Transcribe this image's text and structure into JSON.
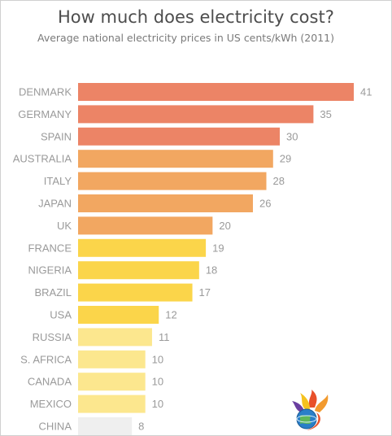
{
  "chart_data": {
    "type": "bar",
    "orientation": "horizontal",
    "title": "How much does electricity cost?",
    "subtitle": "Average national electricity prices in US cents/kWh (2011)",
    "xlabel": "",
    "ylabel": "",
    "xlim": [
      0,
      41
    ],
    "grid": false,
    "legend": "none",
    "categories": [
      "DENMARK",
      "GERMANY",
      "SPAIN",
      "AUSTRALIA",
      "ITALY",
      "JAPAN",
      "UK",
      "FRANCE",
      "NIGERIA",
      "BRAZIL",
      "USA",
      "RUSSIA",
      "S. AFRICA",
      "CANADA",
      "MEXICO",
      "CHINA"
    ],
    "values": [
      41,
      35,
      30,
      29,
      28,
      26,
      20,
      19,
      18,
      17,
      12,
      11,
      10,
      10,
      10,
      8
    ],
    "colors": [
      "#ec8466",
      "#ec8466",
      "#ec8466",
      "#f2a761",
      "#f2a761",
      "#f2a761",
      "#f2a761",
      "#fbd54a",
      "#fbd54a",
      "#fbd54a",
      "#fbd54a",
      "#fce78e",
      "#fce78e",
      "#fce78e",
      "#fce78e",
      "#efefef"
    ]
  },
  "logo": {
    "icon": "flame-globe-logo"
  }
}
